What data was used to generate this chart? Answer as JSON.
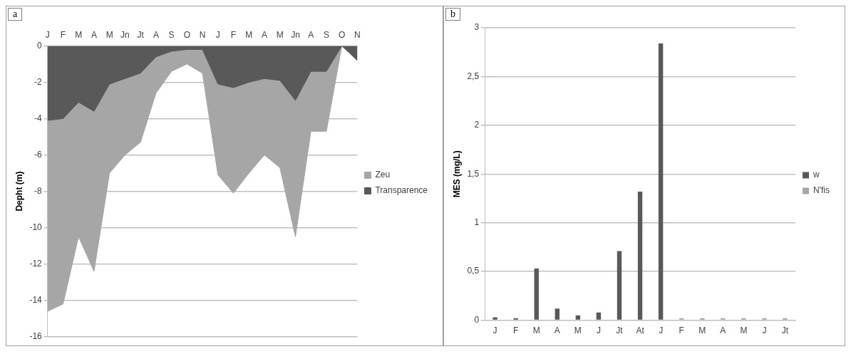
{
  "chart_data": [
    {
      "type": "area",
      "annotations": [
        "a"
      ],
      "ylabel": "Depht (m)",
      "categories": [
        "J",
        "F",
        "M",
        "A",
        "M",
        "Jn",
        "Jt",
        "A",
        "S",
        "O",
        "N",
        "J",
        "F",
        "M",
        "A",
        "M",
        "Jn",
        "A",
        "S",
        "O",
        "N"
      ],
      "series": [
        {
          "name": "Zeu",
          "color": "#a6a6a6",
          "values": [
            -14.6,
            -14.2,
            -10.5,
            -12.4,
            -7.0,
            -6.0,
            -5.3,
            -2.6,
            -1.4,
            -1.0,
            -1.5,
            -7.1,
            -8.1,
            -7.0,
            -6.0,
            -6.7,
            -10.5,
            -4.7,
            -4.7,
            0,
            -0.8
          ]
        },
        {
          "name": "Transparence",
          "color": "#595959",
          "values": [
            -4.1,
            -4.0,
            -3.1,
            -3.6,
            -2.1,
            -1.8,
            -1.5,
            -0.6,
            -0.3,
            -0.2,
            -0.2,
            -2.1,
            -2.3,
            -2.0,
            -1.8,
            -1.9,
            -3.0,
            -1.4,
            -1.4,
            0,
            -0.8
          ]
        }
      ],
      "ylim": [
        -16,
        0
      ],
      "yticks": [
        -16,
        -14,
        -12,
        -10,
        -8,
        -6,
        -4,
        -2,
        0
      ],
      "grid": "y",
      "legend": "right"
    },
    {
      "type": "bar",
      "annotations": [
        "b"
      ],
      "ylabel": "MES (mg/L)",
      "categories": [
        "J",
        "F",
        "M",
        "A",
        "M",
        "J",
        "Jt",
        "At",
        "J",
        "F",
        "M",
        "A",
        "M",
        "J",
        "Jt"
      ],
      "series": [
        {
          "name": "w",
          "color": "#595959",
          "values": [
            0.03,
            0.02,
            0.53,
            0.12,
            0.05,
            0.08,
            0.71,
            1.32,
            2.84,
            null,
            null,
            null,
            null,
            null,
            null
          ]
        },
        {
          "name": "N'fis",
          "color": "#a6a6a6",
          "values": [
            null,
            null,
            null,
            null,
            null,
            null,
            null,
            null,
            null,
            0.02,
            0.02,
            0.02,
            0.02,
            0.02,
            0.02
          ]
        }
      ],
      "ylim": [
        0,
        3
      ],
      "yticks": [
        0,
        {
          "value": 0.5,
          "label": "0,5"
        },
        1,
        {
          "value": 1.5,
          "label": "1,5"
        },
        2,
        {
          "value": 2.5,
          "label": "2,5"
        },
        3
      ],
      "grid": "y",
      "legend": "right"
    }
  ]
}
